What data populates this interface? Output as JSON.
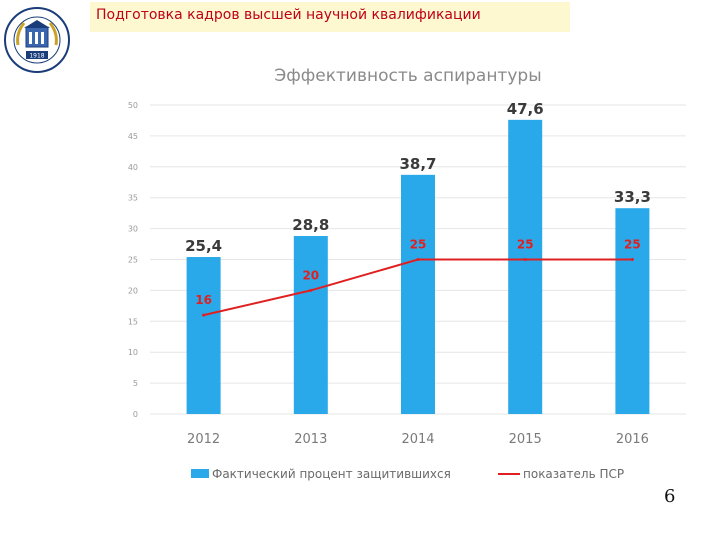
{
  "slide": {
    "title": "Подготовка кадров высшей научной квалификации",
    "page_number": "6",
    "logo_year": "1918"
  },
  "colors": {
    "bar": "#2aa9ea",
    "line": "#e02020",
    "title_text": "#c0001a",
    "title_bg": "#fdf8cf",
    "bar_label": "#3a3a3a",
    "axis_text": "#9a9a9a",
    "grid": "#e6e6e6"
  },
  "chart_data": {
    "type": "bar",
    "title": "Эффективность аспирантуры",
    "categories": [
      "2012",
      "2013",
      "2014",
      "2015",
      "2016"
    ],
    "ylim": [
      0,
      50
    ],
    "yticks": [
      0,
      5,
      10,
      15,
      20,
      25,
      30,
      35,
      40,
      45,
      50
    ],
    "grid": true,
    "legend_position": "bottom",
    "series": [
      {
        "name": "Фактический процент защитившихся",
        "kind": "bar",
        "values": [
          25.4,
          28.8,
          38.7,
          47.6,
          33.3
        ],
        "labels": [
          "25,4",
          "28,8",
          "38,7",
          "47,6",
          "33,3"
        ]
      },
      {
        "name": "показатель ПСР",
        "kind": "line",
        "values": [
          16,
          20,
          25,
          25,
          25
        ],
        "labels": [
          "16",
          "20",
          "25",
          "25",
          "25"
        ]
      }
    ]
  }
}
